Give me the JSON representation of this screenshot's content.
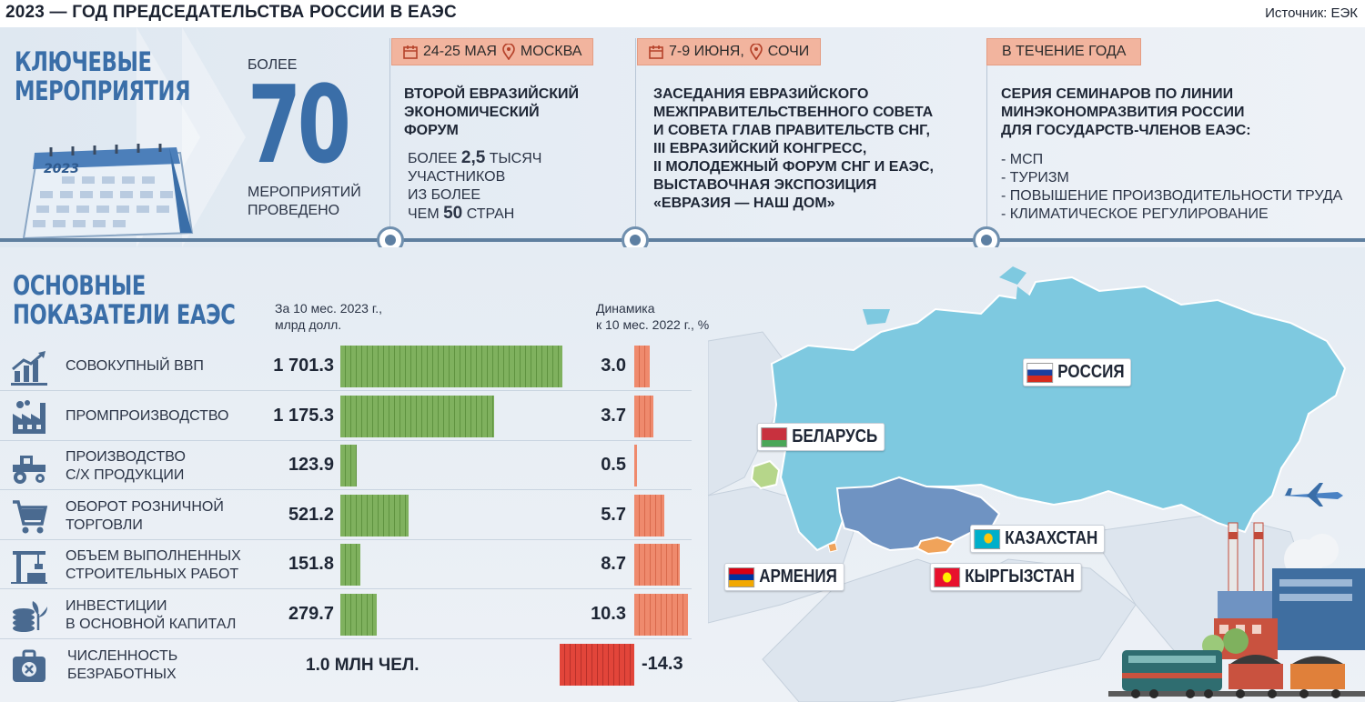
{
  "header": {
    "title": "2023 — ГОД ПРЕДСЕДАТЕЛЬСТВА РОССИИ В ЕАЭС",
    "source": "Источник: ЕЭК"
  },
  "events": {
    "section_title_line1": "КЛЮЧЕВЫЕ",
    "section_title_line2": "МЕРОПРИЯТИЯ",
    "calendar_year": "2023",
    "count_prefix": "БОЛЕЕ",
    "count": "70",
    "count_suffix_line1": "МЕРОПРИЯТИЙ",
    "count_suffix_line2": "ПРОВЕДЕНО",
    "items": [
      {
        "date": "24-25 МАЯ",
        "place": "МОСКВА",
        "title_lines": [
          "ВТОРОЙ ЕВРАЗИЙСКИЙ",
          "ЭКОНОМИЧЕСКИЙ",
          "ФОРУМ"
        ],
        "sub_line1_pre": "БОЛЕЕ ",
        "sub_line1_num": "2,5",
        "sub_line1_post": " ТЫСЯЧ",
        "sub_line2": "УЧАСТНИКОВ",
        "sub_line3": "ИЗ БОЛЕЕ",
        "sub_line4_pre": "ЧЕМ ",
        "sub_line4_num": "50",
        "sub_line4_post": " СТРАН"
      },
      {
        "date": "7-9 ИЮНЯ,",
        "place": "СОЧИ",
        "title_lines": [
          "ЗАСЕДАНИЯ ЕВРАЗИЙСКОГО",
          "МЕЖПРАВИТЕЛЬСТВЕННОГО СОВЕТА",
          "И СОВЕТА ГЛАВ ПРАВИТЕЛЬСТВ СНГ,",
          "III ЕВРАЗИЙСКИЙ КОНГРЕСС,",
          "II МОЛОДЕЖНЫЙ ФОРУМ СНГ И ЕАЭС,",
          "ВЫСТАВОЧНАЯ ЭКСПОЗИЦИЯ",
          "«ЕВРАЗИЯ — НАШ ДОМ»"
        ]
      },
      {
        "date": "В ТЕЧЕНИЕ ГОДА",
        "title_lines": [
          "СЕРИЯ СЕМИНАРОВ ПО ЛИНИИ",
          "МИНЭКОНОМРАЗВИТИЯ РОССИИ",
          "ДЛЯ ГОСУДАРСТВ-ЧЛЕНОВ ЕАЭС:"
        ],
        "list": [
          "- МСП",
          "- ТУРИЗМ",
          "- ПОВЫШЕНИЕ ПРОИЗВОДИТЕЛЬНОСТИ ТРУДА",
          "- КЛИМАТИЧЕСКОЕ РЕГУЛИРОВАНИЕ"
        ]
      }
    ]
  },
  "indicators": {
    "section_title_line1": "ОСНОВНЫЕ",
    "section_title_line2": "ПОКАЗАТЕЛИ ЕАЭС",
    "col_value_line1": "За 10 мес. 2023 г.,",
    "col_value_line2": "млрд долл.",
    "col_dyn_line1": "Динамика",
    "col_dyn_line2": "к 10 мес. 2022 г., %",
    "rows": [
      {
        "label1": "СОВОКУПНЫЙ ВВП",
        "label2": "",
        "icon": "growth-chart-icon",
        "value": "1 701.3",
        "dynamic": "3.0",
        "value_num": 1701.3,
        "dynamic_num": 3.0
      },
      {
        "label1": "ПРОМПРОИЗВОДСТВО",
        "label2": "",
        "icon": "factory-icon",
        "value": "1 175.3",
        "dynamic": "3.7",
        "value_num": 1175.3,
        "dynamic_num": 3.7
      },
      {
        "label1": "ПРОИЗВОДСТВО",
        "label2": "С/Х ПРОДУКЦИИ",
        "icon": "tractor-icon",
        "value": "123.9",
        "dynamic": "0.5",
        "value_num": 123.9,
        "dynamic_num": 0.5
      },
      {
        "label1": "ОБОРОТ РОЗНИЧНОЙ",
        "label2": "ТОРГОВЛИ",
        "icon": "shopping-cart-icon",
        "value": "521.2",
        "dynamic": "5.7",
        "value_num": 521.2,
        "dynamic_num": 5.7
      },
      {
        "label1": "ОБЪЕМ ВЫПОЛНЕННЫХ",
        "label2": "СТРОИТЕЛЬНЫХ РАБОТ",
        "icon": "crane-icon",
        "value": "151.8",
        "dynamic": "8.7",
        "value_num": 151.8,
        "dynamic_num": 8.7
      },
      {
        "label1": "ИНВЕСТИЦИИ",
        "label2": "В ОСНОВНОЙ КАПИТАЛ",
        "icon": "coins-plant-icon",
        "value": "279.7",
        "dynamic": "10.3",
        "value_num": 279.7,
        "dynamic_num": 10.3
      },
      {
        "label1": "ЧИСЛЕННОСТЬ",
        "label2": "БЕЗРАБОТНЫХ",
        "icon": "briefcase-x-icon",
        "value": "1.0 МЛН ЧЕЛ.",
        "dynamic": "-14.3",
        "value_num": 1.0,
        "dynamic_num": -14.3
      }
    ]
  },
  "map": {
    "countries": [
      {
        "name": "РОССИЯ",
        "flag": [
          "#ffffff",
          "#1c3f9e",
          "#d52b1e"
        ]
      },
      {
        "name": "БЕЛАРУСЬ",
        "flag": [
          "#c8313e",
          "#4aa657"
        ]
      },
      {
        "name": "КАЗАХСТАН",
        "flag": [
          "#00afca",
          "#fec50c"
        ]
      },
      {
        "name": "АРМЕНИЯ",
        "flag": [
          "#d90012",
          "#0033a0",
          "#f2a800"
        ]
      },
      {
        "name": "КЫРГЫЗСТАН",
        "flag": [
          "#e8112d",
          "#ffef00"
        ]
      }
    ]
  },
  "colors": {
    "accent_blue": "#3a6ea8",
    "value_bar_green": "#7fb15e",
    "dynamic_bar_salmon": "#ef8a6d",
    "negative_bar_red": "#e2453a",
    "tag_peach": "#f2b49e",
    "russia_blue": "#7ec9e0",
    "kazakhstan_blue": "#6f93c2",
    "belarus_green": "#b6d68a",
    "kyrgyzstan_orange": "#f0a35a"
  }
}
